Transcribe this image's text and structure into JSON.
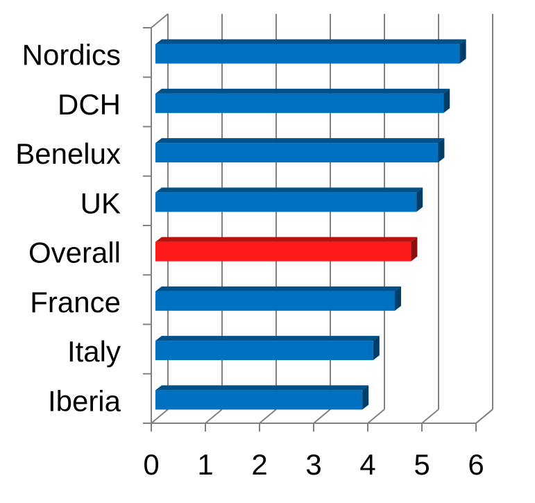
{
  "chart_data": {
    "type": "bar",
    "orientation": "horizontal",
    "three_d": true,
    "title": "",
    "xlabel": "",
    "ylabel": "",
    "categories": [
      "Nordics",
      "DCH",
      "Benelux",
      "UK",
      "Overall",
      "France",
      "Italy",
      "Iberia"
    ],
    "values": [
      5.7,
      5.4,
      5.3,
      4.9,
      4.8,
      4.5,
      4.1,
      3.9
    ],
    "bar_colors": [
      "#0070c0",
      "#0070c0",
      "#0070c0",
      "#0070c0",
      "#ff1a1a",
      "#0070c0",
      "#0070c0",
      "#0070c0"
    ],
    "highlight_category": "Overall",
    "xlim": [
      0,
      6
    ],
    "xticks": [
      "0",
      "1",
      "2",
      "3",
      "4",
      "5",
      "6"
    ],
    "grid": true,
    "legend": "none"
  }
}
